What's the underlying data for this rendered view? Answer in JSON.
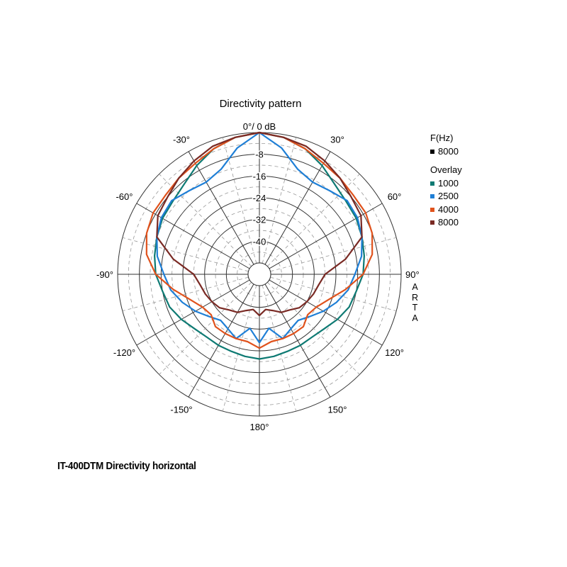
{
  "chart_data": {
    "type": "polar-line",
    "title": "Directivity pattern",
    "radial_unit": "dB",
    "rlim": [
      -48,
      0
    ],
    "radial_ticks": [
      "0°/ 0 dB",
      "-8",
      "-16",
      "-24",
      "-32",
      "-40"
    ],
    "radial_tick_values": [
      0,
      -8,
      -16,
      -24,
      -32,
      -40
    ],
    "angle_ticks": [
      {
        "angle": 0,
        "label": "0°/ 0 dB"
      },
      {
        "angle": -30,
        "label": "-30°"
      },
      {
        "angle": 30,
        "label": "30°"
      },
      {
        "angle": -60,
        "label": "-60°"
      },
      {
        "angle": 60,
        "label": "60°"
      },
      {
        "angle": -90,
        "label": "-90°"
      },
      {
        "angle": 90,
        "label": "90°"
      },
      {
        "angle": -120,
        "label": "-120°"
      },
      {
        "angle": 120,
        "label": "120°"
      },
      {
        "angle": -150,
        "label": "-150°"
      },
      {
        "angle": 150,
        "label": "150°"
      },
      {
        "angle": 180,
        "label": "180°"
      }
    ],
    "legend": {
      "header": "F(Hz)",
      "current": {
        "label": "8000",
        "color": "#000000"
      },
      "overlay_header": "Overlay",
      "entries": [
        {
          "label": "1000",
          "color": "#0e7a73"
        },
        {
          "label": "2500",
          "color": "#1f7fd6"
        },
        {
          "label": "4000",
          "color": "#e0521c"
        },
        {
          "label": "8000",
          "color": "#7a2a24"
        }
      ]
    },
    "angles": [
      -180,
      -170,
      -160,
      -150,
      -140,
      -130,
      -120,
      -110,
      -100,
      -90,
      -80,
      -70,
      -60,
      -50,
      -40,
      -30,
      -20,
      -10,
      0,
      10,
      20,
      30,
      40,
      50,
      60,
      70,
      80,
      90,
      100,
      110,
      120,
      130,
      140,
      150,
      160,
      170,
      180
    ],
    "series": [
      {
        "name": "1000",
        "color": "#0e7a73",
        "values": [
          -21,
          -21.5,
          -22,
          -22,
          -22,
          -21,
          -19,
          -17,
          -16,
          -14,
          -13,
          -12,
          -11,
          -10.5,
          -9,
          -6,
          -3,
          -1,
          0,
          -1,
          -3,
          -6,
          -9,
          -10.5,
          -11,
          -12,
          -13,
          -14,
          -16,
          -17,
          -19,
          -21,
          -22,
          -22,
          -22,
          -21.5,
          -21
        ]
      },
      {
        "name": "2500",
        "color": "#1f7fd6",
        "values": [
          -27,
          -32,
          -27,
          -29,
          -30,
          -28,
          -25,
          -22,
          -19,
          -17,
          -14,
          -12,
          -10.5,
          -10,
          -12,
          -13,
          -11,
          -5,
          0,
          -5,
          -11,
          -13,
          -12,
          -10,
          -10.5,
          -12,
          -14,
          -17,
          -19,
          -22,
          -25,
          -28,
          -30,
          -29,
          -27,
          -32,
          -27
        ]
      },
      {
        "name": "4000",
        "color": "#e0521c",
        "values": [
          -25,
          -27,
          -27,
          -27,
          -27,
          -29,
          -28,
          -25,
          -20,
          -14,
          -10,
          -8,
          -7,
          -7,
          -6,
          -5,
          -3,
          -1,
          0,
          -1,
          -3,
          -5,
          -6,
          -7,
          -7,
          -8,
          -10,
          -14,
          -20,
          -25,
          -28,
          -29,
          -27,
          -27,
          -27,
          -27,
          -25
        ]
      },
      {
        "name": "8000",
        "color": "#7a2a24",
        "values": [
          -37,
          -39,
          -38,
          -36,
          -35,
          -33,
          -32,
          -31,
          -30,
          -28,
          -20,
          -12,
          -9,
          -8,
          -6,
          -4,
          -2,
          -1,
          0,
          -1,
          -2,
          -4,
          -6,
          -8,
          -9,
          -12,
          -20,
          -28,
          -30,
          -31,
          -32,
          -33,
          -35,
          -36,
          -38,
          -39,
          -37
        ]
      }
    ],
    "grid": true
  },
  "watermark": [
    "A",
    "R",
    "T",
    "A"
  ],
  "caption": "IT-400DTM Directivity horizontal"
}
